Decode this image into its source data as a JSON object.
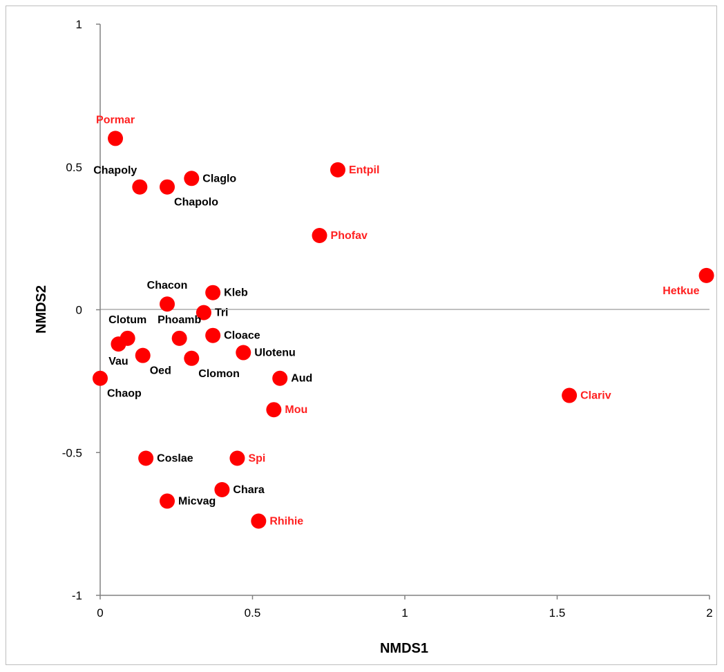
{
  "chart_data": {
    "type": "scatter",
    "title": "",
    "xlabel": "NMDS1",
    "ylabel": "NMDS2",
    "xlim": [
      0,
      2
    ],
    "ylim": [
      -1,
      1
    ],
    "xticks": [
      "0",
      "0.5",
      "1",
      "1.5",
      "2"
    ],
    "yticks": [
      "1",
      "0.5",
      "0",
      "-0.5",
      "-1"
    ],
    "grid": false,
    "legend": "none",
    "marker_color": "#ff0000",
    "label_colors": {
      "black": "#000000",
      "red": "#ff2020"
    },
    "points": [
      {
        "label": "Pormar",
        "x": 0.05,
        "y": 0.6,
        "label_color": "red",
        "label_pos": "above"
      },
      {
        "label": "Chapoly",
        "x": 0.13,
        "y": 0.43,
        "label_color": "black",
        "label_pos": "above-left"
      },
      {
        "label": "Chapolo",
        "x": 0.22,
        "y": 0.43,
        "label_color": "black",
        "label_pos": "below-right"
      },
      {
        "label": "Claglo",
        "x": 0.3,
        "y": 0.46,
        "label_color": "black",
        "label_pos": "right"
      },
      {
        "label": "Entpil",
        "x": 0.78,
        "y": 0.49,
        "label_color": "red",
        "label_pos": "right"
      },
      {
        "label": "Phofav",
        "x": 0.72,
        "y": 0.26,
        "label_color": "red",
        "label_pos": "right"
      },
      {
        "label": "Hetkue",
        "x": 1.99,
        "y": 0.12,
        "label_color": "red",
        "label_pos": "below-left"
      },
      {
        "label": "Chacon",
        "x": 0.22,
        "y": 0.02,
        "label_color": "black",
        "label_pos": "above"
      },
      {
        "label": "Kleb",
        "x": 0.37,
        "y": 0.06,
        "label_color": "black",
        "label_pos": "right"
      },
      {
        "label": "Tri",
        "x": 0.34,
        "y": -0.01,
        "label_color": "black",
        "label_pos": "right"
      },
      {
        "label": "Clotum",
        "x": 0.09,
        "y": -0.1,
        "label_color": "black",
        "label_pos": "above"
      },
      {
        "label": "Phoamb",
        "x": 0.26,
        "y": -0.1,
        "label_color": "black",
        "label_pos": "above"
      },
      {
        "label": "Cloace",
        "x": 0.37,
        "y": -0.09,
        "label_color": "black",
        "label_pos": "right"
      },
      {
        "label": "Vau",
        "x": 0.06,
        "y": -0.12,
        "label_color": "black",
        "label_pos": "below"
      },
      {
        "label": "Oed",
        "x": 0.14,
        "y": -0.16,
        "label_color": "black",
        "label_pos": "below-right"
      },
      {
        "label": "Clomon",
        "x": 0.3,
        "y": -0.17,
        "label_color": "black",
        "label_pos": "below-right"
      },
      {
        "label": "Ulotenu",
        "x": 0.47,
        "y": -0.15,
        "label_color": "black",
        "label_pos": "right"
      },
      {
        "label": "Aud",
        "x": 0.59,
        "y": -0.24,
        "label_color": "black",
        "label_pos": "right"
      },
      {
        "label": "Chaop",
        "x": 0.0,
        "y": -0.24,
        "label_color": "black",
        "label_pos": "below-right"
      },
      {
        "label": "Clariv",
        "x": 1.54,
        "y": -0.3,
        "label_color": "red",
        "label_pos": "right"
      },
      {
        "label": "Mou",
        "x": 0.57,
        "y": -0.35,
        "label_color": "red",
        "label_pos": "right"
      },
      {
        "label": "Coslae",
        "x": 0.15,
        "y": -0.52,
        "label_color": "black",
        "label_pos": "right"
      },
      {
        "label": "Spi",
        "x": 0.45,
        "y": -0.52,
        "label_color": "red",
        "label_pos": "right"
      },
      {
        "label": "Chara",
        "x": 0.4,
        "y": -0.63,
        "label_color": "black",
        "label_pos": "right"
      },
      {
        "label": "Micvag",
        "x": 0.22,
        "y": -0.67,
        "label_color": "black",
        "label_pos": "right"
      },
      {
        "label": "Rhihie",
        "x": 0.52,
        "y": -0.74,
        "label_color": "red",
        "label_pos": "right"
      }
    ]
  }
}
